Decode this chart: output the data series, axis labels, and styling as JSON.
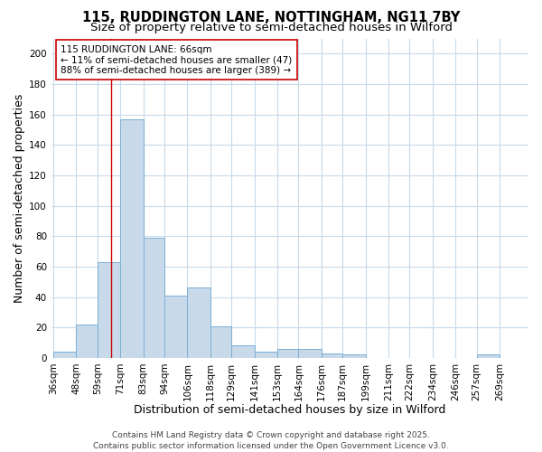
{
  "title_line1": "115, RUDDINGTON LANE, NOTTINGHAM, NG11 7BY",
  "title_line2": "Size of property relative to semi-detached houses in Wilford",
  "xlabel": "Distribution of semi-detached houses by size in Wilford",
  "ylabel": "Number of semi-detached properties",
  "bar_color": "#c8daea",
  "bar_edge_color": "#7aafd4",
  "bins": [
    36,
    48,
    59,
    71,
    83,
    94,
    106,
    118,
    129,
    141,
    153,
    164,
    176,
    187,
    199,
    211,
    222,
    234,
    246,
    257,
    269,
    281
  ],
  "bin_labels": [
    "36sqm",
    "48sqm",
    "59sqm",
    "71sqm",
    "83sqm",
    "94sqm",
    "106sqm",
    "118sqm",
    "129sqm",
    "141sqm",
    "153sqm",
    "164sqm",
    "176sqm",
    "187sqm",
    "199sqm",
    "211sqm",
    "222sqm",
    "234sqm",
    "246sqm",
    "257sqm",
    "269sqm"
  ],
  "values": [
    4,
    22,
    63,
    157,
    79,
    41,
    46,
    21,
    8,
    4,
    6,
    6,
    3,
    2,
    0,
    0,
    0,
    0,
    0,
    2,
    0
  ],
  "red_line_x": 66,
  "annotation_line1": "115 RUDDINGTON LANE: 66sqm",
  "annotation_line2": "← 11% of semi-detached houses are smaller (47)",
  "annotation_line3": "88% of semi-detached houses are larger (389) →",
  "ylim": [
    0,
    210
  ],
  "yticks": [
    0,
    20,
    40,
    60,
    80,
    100,
    120,
    140,
    160,
    180,
    200
  ],
  "footer_line1": "Contains HM Land Registry data © Crown copyright and database right 2025.",
  "footer_line2": "Contains public sector information licensed under the Open Government Licence v3.0.",
  "background_color": "#ffffff",
  "grid_color": "#c8daea",
  "title_fontsize": 10.5,
  "subtitle_fontsize": 9.5,
  "axis_label_fontsize": 9,
  "tick_fontsize": 7.5,
  "annotation_fontsize": 7.5,
  "footer_fontsize": 6.5
}
